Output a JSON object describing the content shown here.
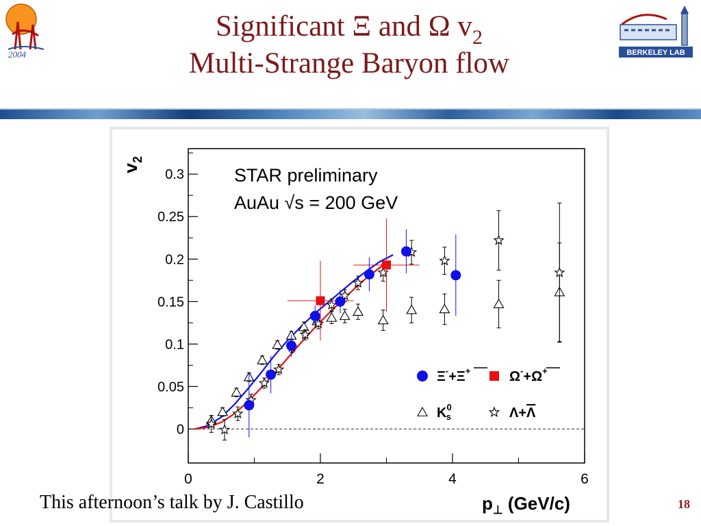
{
  "slide": {
    "title_prefix": "Significant Ξ and Ω v",
    "title_subscript": "2",
    "title_line2": "Multi-Strange Baryon flow",
    "footer": "This afternoon’s talk by J. Castillo",
    "page_number": "18",
    "logo_left_text": "2004",
    "logo_right_text": "BERKELEY LAB"
  },
  "colors": {
    "title": "#7a1a1a",
    "xi": "#1010e8",
    "omega": "#e81010",
    "fit_blue": "#1010e8",
    "fit_red": "#e81010",
    "page_number": "#8b1a1a"
  },
  "chart_data": {
    "type": "scatter",
    "ylabel": "v",
    "ylabel_sub": "2",
    "xlabel": "p",
    "xlabel_sub": "⊥",
    "xlabel_suffix": " (GeV/c)",
    "xlim": [
      0,
      6
    ],
    "ylim": [
      -0.04,
      0.33
    ],
    "xticks": [
      "0",
      "2",
      "4",
      "6"
    ],
    "yticks": [
      "0",
      "0.05",
      "0.1",
      "0.15",
      "0.2",
      "0.25",
      "0.3"
    ],
    "reference_line_y": 0,
    "annotation_line1": "STAR preliminary",
    "annotation_line2": "AuAu √s = 200 GeV",
    "series": [
      {
        "name": "Ξ⁻+Ξ̄⁺",
        "legend_prefix": "Ξ",
        "legend_sup1": "-",
        "legend_mid": "+Ξ",
        "legend_sup2": "+",
        "marker": "filled-circle",
        "color": "#1010e8",
        "points": [
          {
            "x": 0.92,
            "y": 0.028,
            "err": 0.038
          },
          {
            "x": 1.25,
            "y": 0.064,
            "err": 0.022
          },
          {
            "x": 1.56,
            "y": 0.098,
            "err": 0.013
          },
          {
            "x": 1.92,
            "y": 0.133,
            "err": 0.012
          },
          {
            "x": 2.3,
            "y": 0.15,
            "err": 0.014
          },
          {
            "x": 2.74,
            "y": 0.182,
            "err": 0.02
          },
          {
            "x": 3.3,
            "y": 0.209,
            "err": 0.026
          },
          {
            "x": 4.05,
            "y": 0.181,
            "err": 0.048
          }
        ]
      },
      {
        "name": "Ω⁻+Ω̄⁺",
        "legend_prefix": "Ω",
        "legend_sup1": "-",
        "legend_mid": "+Ω",
        "legend_sup2": "+",
        "marker": "filled-square",
        "color": "#e81010",
        "points": [
          {
            "x": 2.0,
            "y": 0.151,
            "err": 0.047,
            "xerr": 0.5
          },
          {
            "x": 3.0,
            "y": 0.193,
            "err": 0.055,
            "xerr": 0.5
          }
        ]
      },
      {
        "name": "K⁰s",
        "legend_prefix": "K",
        "legend_sup1": "0",
        "legend_sub": "s",
        "marker": "open-triangle",
        "color": "#000000",
        "points": [
          {
            "x": 0.35,
            "y": 0.01,
            "err": 0.006
          },
          {
            "x": 0.52,
            "y": 0.02,
            "err": 0.005
          },
          {
            "x": 0.73,
            "y": 0.043,
            "err": 0.005
          },
          {
            "x": 0.92,
            "y": 0.061,
            "err": 0.005
          },
          {
            "x": 1.12,
            "y": 0.081,
            "err": 0.005
          },
          {
            "x": 1.35,
            "y": 0.099,
            "err": 0.005
          },
          {
            "x": 1.56,
            "y": 0.11,
            "err": 0.005
          },
          {
            "x": 1.75,
            "y": 0.12,
            "err": 0.006
          },
          {
            "x": 1.95,
            "y": 0.127,
            "err": 0.006
          },
          {
            "x": 2.17,
            "y": 0.131,
            "err": 0.007
          },
          {
            "x": 2.37,
            "y": 0.133,
            "err": 0.008
          },
          {
            "x": 2.57,
            "y": 0.138,
            "err": 0.009
          },
          {
            "x": 2.95,
            "y": 0.128,
            "err": 0.012
          },
          {
            "x": 3.38,
            "y": 0.14,
            "err": 0.015
          },
          {
            "x": 3.88,
            "y": 0.141,
            "err": 0.018
          },
          {
            "x": 4.7,
            "y": 0.147,
            "err": 0.028
          },
          {
            "x": 5.62,
            "y": 0.161,
            "err": 0.058
          }
        ]
      },
      {
        "name": "Λ+Λ̄",
        "legend_prefix": "Λ+",
        "legend_overline": "Λ",
        "marker": "open-star",
        "color": "#000000",
        "points": [
          {
            "x": 0.35,
            "y": 0.006,
            "err": 0.01
          },
          {
            "x": 0.55,
            "y": -0.001,
            "err": 0.012
          },
          {
            "x": 0.75,
            "y": 0.018,
            "err": 0.008
          },
          {
            "x": 0.95,
            "y": 0.034,
            "err": 0.007
          },
          {
            "x": 1.15,
            "y": 0.054,
            "err": 0.006
          },
          {
            "x": 1.37,
            "y": 0.07,
            "err": 0.006
          },
          {
            "x": 1.57,
            "y": 0.096,
            "err": 0.006
          },
          {
            "x": 1.77,
            "y": 0.111,
            "err": 0.006
          },
          {
            "x": 1.97,
            "y": 0.124,
            "err": 0.006
          },
          {
            "x": 2.17,
            "y": 0.146,
            "err": 0.007
          },
          {
            "x": 2.37,
            "y": 0.157,
            "err": 0.007
          },
          {
            "x": 2.57,
            "y": 0.172,
            "err": 0.008
          },
          {
            "x": 2.95,
            "y": 0.184,
            "err": 0.01
          },
          {
            "x": 3.38,
            "y": 0.208,
            "err": 0.014
          },
          {
            "x": 3.88,
            "y": 0.198,
            "err": 0.016
          },
          {
            "x": 4.7,
            "y": 0.222,
            "err": 0.035
          },
          {
            "x": 5.62,
            "y": 0.184,
            "err": 0.082
          }
        ]
      }
    ],
    "fits": [
      {
        "color": "#1010e8",
        "points": [
          [
            0.1,
            0.0
          ],
          [
            0.3,
            0.004
          ],
          [
            0.5,
            0.014
          ],
          [
            0.7,
            0.029
          ],
          [
            0.9,
            0.047
          ],
          [
            1.1,
            0.066
          ],
          [
            1.3,
            0.086
          ],
          [
            1.5,
            0.104
          ],
          [
            1.7,
            0.12
          ],
          [
            1.9,
            0.135
          ],
          [
            2.1,
            0.148
          ],
          [
            2.3,
            0.161
          ],
          [
            2.5,
            0.174
          ],
          [
            2.7,
            0.186
          ],
          [
            2.9,
            0.197
          ],
          [
            3.1,
            0.205
          ]
        ]
      },
      {
        "color": "#e81010",
        "points": [
          [
            0.1,
            0.0
          ],
          [
            0.3,
            0.002
          ],
          [
            0.5,
            0.008
          ],
          [
            0.7,
            0.018
          ],
          [
            0.9,
            0.032
          ],
          [
            1.1,
            0.048
          ],
          [
            1.3,
            0.065
          ],
          [
            1.5,
            0.083
          ],
          [
            1.7,
            0.101
          ],
          [
            1.9,
            0.118
          ],
          [
            2.1,
            0.134
          ],
          [
            2.3,
            0.149
          ],
          [
            2.5,
            0.164
          ],
          [
            2.7,
            0.178
          ],
          [
            2.9,
            0.19
          ],
          [
            3.05,
            0.198
          ]
        ]
      }
    ]
  }
}
